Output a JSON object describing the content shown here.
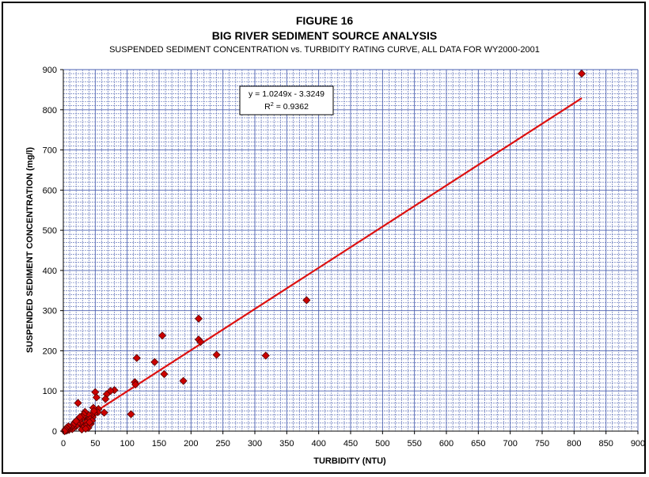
{
  "header": {
    "figure_label": "FIGURE 16",
    "title": "BIG RIVER SEDIMENT SOURCE ANALYSIS",
    "subtitle": "SUSPENDED SEDIMENT CONCENTRATION vs. TURBIDITY RATING CURVE, ALL DATA FOR WY2000-2001"
  },
  "chart_data": {
    "type": "scatter",
    "title": "BIG RIVER SEDIMENT SOURCE ANALYSIS",
    "xlabel": "TURBIDITY (NTU)",
    "ylabel": "SUSPENDED SEDIMENT CONCENTRATION (mg/l)",
    "xlim": [
      0,
      900
    ],
    "ylim": [
      0,
      900
    ],
    "x_ticks": [
      "0",
      "50",
      "100",
      "150",
      "200",
      "250",
      "300",
      "350",
      "400",
      "450",
      "500",
      "550",
      "600",
      "650",
      "700",
      "750",
      "800",
      "850",
      "900"
    ],
    "y_ticks": [
      "0",
      "100",
      "200",
      "300",
      "400",
      "500",
      "600",
      "700",
      "800",
      "900"
    ],
    "grid": true,
    "colors": {
      "plot_bg": "#ffffff",
      "grid": "#4a5fb0",
      "point": "#cc0000",
      "trendline": "#dd1111"
    },
    "trendline": {
      "slope": 1.0249,
      "intercept": -3.3249,
      "x_range": [
        10,
        812
      ],
      "equation": "y = 1.0249x - 3.3249",
      "r2_label": "R",
      "r2_sup": "2",
      "r2_value": " = 0.9362"
    },
    "series": [
      {
        "points": [
          [
            812,
            890
          ],
          [
            381,
            326
          ],
          [
            317,
            188
          ],
          [
            240,
            190
          ],
          [
            212,
            280
          ],
          [
            212,
            228
          ],
          [
            215,
            222
          ],
          [
            188,
            125
          ],
          [
            155,
            238
          ],
          [
            158,
            142
          ],
          [
            143,
            172
          ],
          [
            115,
            182
          ],
          [
            112,
            122
          ],
          [
            113,
            116
          ],
          [
            106,
            42
          ],
          [
            80,
            102
          ],
          [
            74,
            100
          ],
          [
            68,
            92
          ],
          [
            66,
            80
          ],
          [
            64,
            46
          ],
          [
            50,
            97
          ],
          [
            52,
            84
          ],
          [
            55,
            55
          ],
          [
            54,
            47
          ],
          [
            49,
            44
          ],
          [
            47,
            58
          ],
          [
            46,
            35
          ],
          [
            44,
            40
          ],
          [
            40,
            40
          ],
          [
            38,
            28
          ],
          [
            36,
            22
          ],
          [
            34,
            48
          ],
          [
            32,
            42
          ],
          [
            30,
            35
          ],
          [
            28,
            30
          ],
          [
            27,
            20
          ],
          [
            25,
            28
          ],
          [
            23,
            70
          ],
          [
            22,
            18
          ],
          [
            20,
            12
          ],
          [
            18,
            22
          ],
          [
            16,
            8
          ],
          [
            15,
            15
          ],
          [
            14,
            5
          ],
          [
            12,
            10
          ],
          [
            10,
            6
          ],
          [
            9,
            3
          ],
          [
            8,
            12
          ],
          [
            7,
            5
          ],
          [
            6,
            2
          ],
          [
            5,
            8
          ],
          [
            4,
            1
          ],
          [
            3,
            4
          ],
          [
            2,
            0
          ],
          [
            31,
            10
          ],
          [
            29,
            4
          ],
          [
            33,
            12
          ],
          [
            37,
            15
          ],
          [
            39,
            8
          ],
          [
            42,
            30
          ],
          [
            43,
            18
          ],
          [
            45,
            26
          ],
          [
            48,
            50
          ],
          [
            20,
            25
          ],
          [
            26,
            35
          ],
          [
            35,
            6
          ],
          [
            41,
            22
          ]
        ]
      }
    ]
  }
}
